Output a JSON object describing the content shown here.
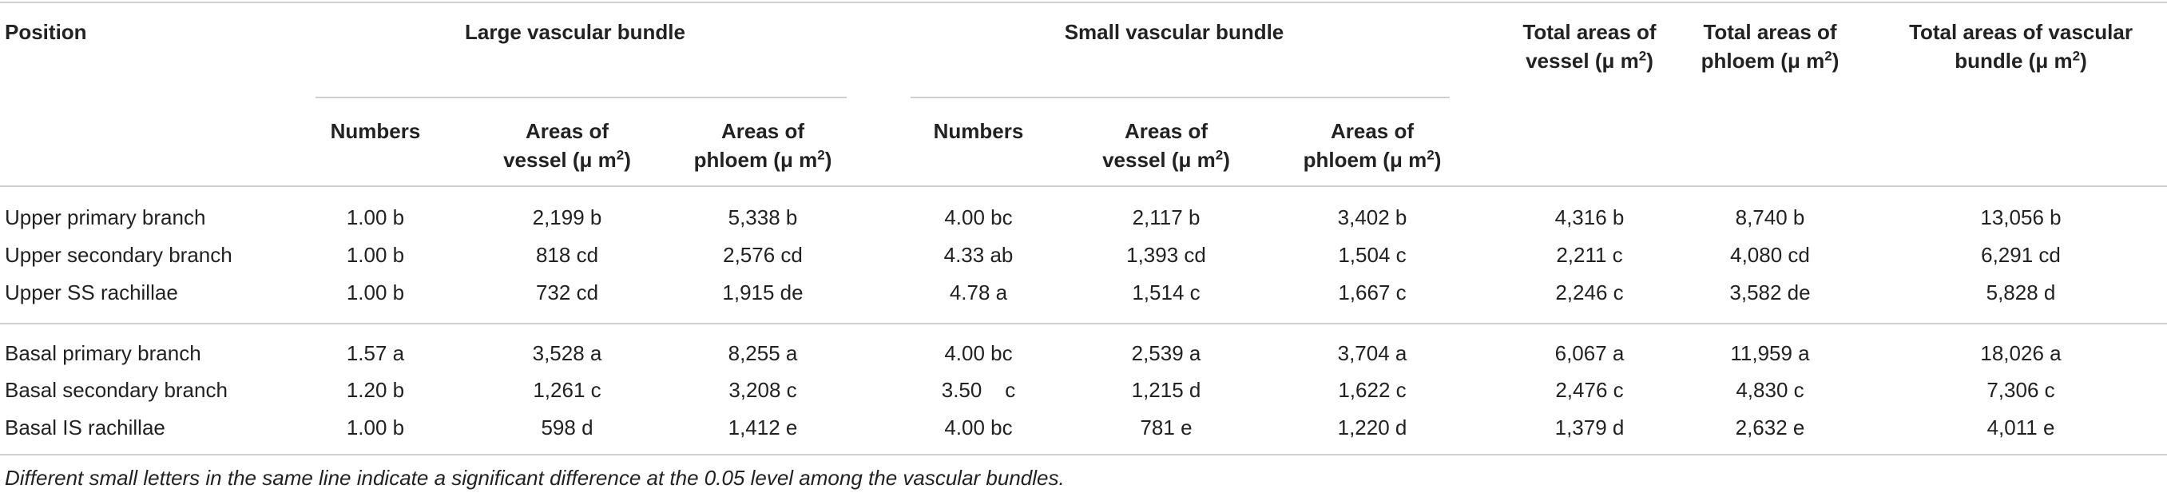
{
  "table": {
    "position_header": "Position",
    "large_group": "Large vascular bundle",
    "small_group": "Small vascular bundle",
    "total_vessel": [
      "Total areas of",
      "vessel (μ m",
      "2",
      ")"
    ],
    "total_phloem": [
      "Total areas of",
      "phloem (μ m",
      "2",
      ")"
    ],
    "total_bundle": [
      "Total areas of vascular",
      "bundle (μ m",
      "2",
      ")"
    ],
    "sub": {
      "numbers": "Numbers",
      "vessel": [
        "Areas of",
        "vessel (μ m",
        "2",
        ")"
      ],
      "phloem": [
        "Areas of",
        "phloem (μ m",
        "2",
        ")"
      ]
    },
    "rows": [
      [
        "Upper primary branch",
        "1.00 b",
        "2,199 b",
        "5,338 b",
        "4.00 bc",
        "2,117 b",
        "3,402 b",
        "4,316 b",
        "8,740 b",
        "13,056 b"
      ],
      [
        "Upper secondary branch",
        "1.00 b",
        "818 cd",
        "2,576 cd",
        "4.33 ab",
        "1,393 cd",
        "1,504 c",
        "2,211 c",
        "4,080 cd",
        "6,291 cd"
      ],
      [
        "Upper SS rachillae",
        "1.00 b",
        "732 cd",
        "1,915 de",
        "4.78 a",
        "1,514 c",
        "1,667 c",
        "2,246 c",
        "3,582 de",
        "5,828 d"
      ],
      [
        "Basal primary branch",
        "1.57 a",
        "3,528 a",
        "8,255 a",
        "4.00 bc",
        "2,539 a",
        "3,704 a",
        "6,067 a",
        "11,959 a",
        "18,026 a"
      ],
      [
        "Basal secondary branch",
        "1.20 b",
        "1,261 c",
        "3,208 c",
        "3.50    c",
        "1,215 d",
        "1,622 c",
        "2,476 c",
        "4,830 c",
        "7,306 c"
      ],
      [
        "Basal IS rachillae",
        "1.00 b",
        "598 d",
        "1,412 e",
        "4.00 bc",
        "781 e",
        "1,220 d",
        "1,379 d",
        "2,632 e",
        "4,011 e"
      ]
    ],
    "footnote": "Different small letters in the same line indicate a significant difference at the 0.05 level among the vascular bundles."
  }
}
